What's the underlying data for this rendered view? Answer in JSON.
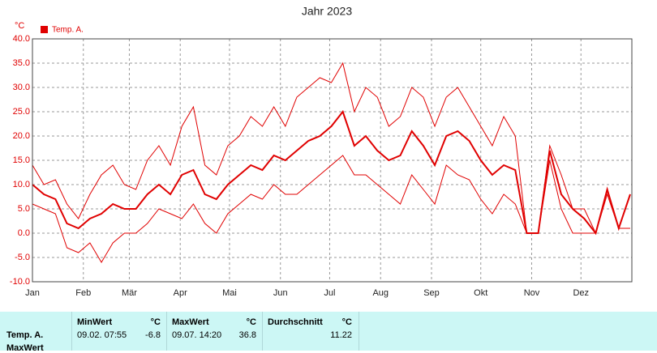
{
  "chart_data": {
    "type": "line",
    "title": "Jahr 2023",
    "y_unit": "°C",
    "x": [
      1,
      8,
      15,
      22,
      29,
      36,
      43,
      50,
      57,
      64,
      71,
      78,
      85,
      92,
      99,
      106,
      113,
      120,
      127,
      134,
      141,
      148,
      155,
      162,
      169,
      176,
      183,
      190,
      197,
      204,
      211,
      218,
      225,
      232,
      239,
      246,
      253,
      260,
      267,
      274,
      281,
      288,
      295,
      302,
      309,
      316,
      323,
      330,
      337,
      344,
      351,
      358,
      365
    ],
    "series": [
      {
        "name": "Temp. A.",
        "color": "#e00000",
        "width": 2,
        "values": [
          10,
          8,
          7,
          2,
          1,
          3,
          4,
          6,
          5,
          5,
          8,
          10,
          8,
          12,
          13,
          8,
          7,
          10,
          12,
          14,
          13,
          16,
          15,
          17,
          19,
          20,
          22,
          25,
          18,
          20,
          17,
          15,
          16,
          21,
          18,
          14,
          20,
          21,
          19,
          15,
          12,
          14,
          13,
          0,
          0,
          17,
          8,
          5,
          3,
          0,
          9,
          1,
          8
        ]
      },
      {
        "color": "#e00000",
        "width": 1,
        "values": [
          14,
          10,
          11,
          6,
          3,
          8,
          12,
          14,
          10,
          9,
          15,
          18,
          14,
          22,
          26,
          14,
          12,
          18,
          20,
          24,
          22,
          26,
          22,
          28,
          30,
          32,
          31,
          35,
          25,
          30,
          28,
          22,
          24,
          30,
          28,
          22,
          28,
          30,
          26,
          22,
          18,
          24,
          20,
          0,
          0,
          18,
          12,
          5,
          5,
          0,
          9,
          1,
          8
        ]
      },
      {
        "color": "#e00000",
        "width": 1,
        "values": [
          6,
          5,
          4,
          -3,
          -4,
          -2,
          -6,
          -2,
          0,
          0,
          2,
          5,
          4,
          3,
          6,
          2,
          0,
          4,
          6,
          8,
          7,
          10,
          8,
          8,
          10,
          12,
          14,
          16,
          12,
          12,
          10,
          8,
          6,
          12,
          9,
          6,
          14,
          12,
          11,
          7,
          4,
          8,
          6,
          0,
          0,
          15,
          5,
          0,
          0,
          0,
          8,
          1,
          1
        ]
      }
    ],
    "xlim": [
      1,
      366
    ],
    "xticks": [
      {
        "value": 1,
        "label": "Jan"
      },
      {
        "value": 32,
        "label": "Feb"
      },
      {
        "value": 60,
        "label": "Mär"
      },
      {
        "value": 91,
        "label": "Apr"
      },
      {
        "value": 121,
        "label": "Mai"
      },
      {
        "value": 152,
        "label": "Jun"
      },
      {
        "value": 182,
        "label": "Jul"
      },
      {
        "value": 213,
        "label": "Aug"
      },
      {
        "value": 244,
        "label": "Sep"
      },
      {
        "value": 274,
        "label": "Okt"
      },
      {
        "value": 305,
        "label": "Nov"
      },
      {
        "value": 335,
        "label": "Dez"
      }
    ],
    "ylim": [
      -10,
      40
    ],
    "yticks": [
      {
        "value": -10,
        "label": "-10.0"
      },
      {
        "value": -5,
        "label": "-5.0"
      },
      {
        "value": 0,
        "label": "0.0"
      },
      {
        "value": 5,
        "label": "5.0"
      },
      {
        "value": 10,
        "label": "10.0"
      },
      {
        "value": 15,
        "label": "15.0"
      },
      {
        "value": 20,
        "label": "20.0"
      },
      {
        "value": 25,
        "label": "25.0"
      },
      {
        "value": 30,
        "label": "30.0"
      },
      {
        "value": 35,
        "label": "35.0"
      },
      {
        "value": 40,
        "label": "40.0"
      }
    ],
    "grid": true
  },
  "summary": {
    "row_label": "Temp. A.",
    "row_label_2": "MaxWert",
    "columns": [
      {
        "header": "MinWert",
        "unit": "°C",
        "date": "09.02.  07:55",
        "value": "-6.8"
      },
      {
        "header": "MaxWert",
        "unit": "°C",
        "date": "09.07.  14:20",
        "value": "36.8"
      },
      {
        "header": "Durchschnitt",
        "unit": "°C",
        "value": "11.22"
      }
    ]
  }
}
